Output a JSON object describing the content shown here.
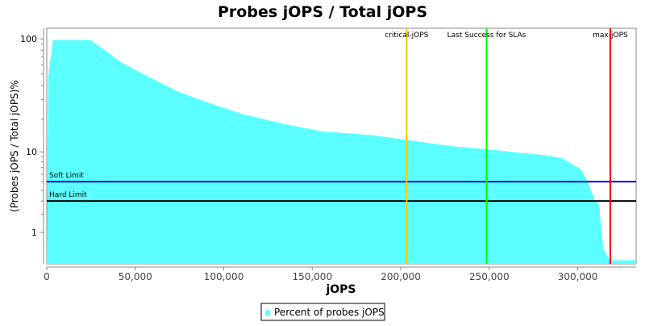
{
  "chart_data": {
    "type": "area",
    "title": "Probes jOPS / Total jOPS",
    "xlabel": "jOPS",
    "ylabel": "(Probes jOPS / Total jOPS)%",
    "x_scale": "linear",
    "y_scale": "log",
    "xlim": [
      0,
      333000
    ],
    "ylim": [
      0,
      100
    ],
    "x_ticks": [
      0,
      50000,
      100000,
      150000,
      200000,
      250000,
      300000
    ],
    "x_tick_labels": [
      "0",
      "50,000",
      "100,000",
      "150,000",
      "200,000",
      "250,000",
      "300,000"
    ],
    "y_ticks": [
      1,
      10,
      100
    ],
    "y_tick_labels": [
      "1",
      "10",
      "100"
    ],
    "grid": false,
    "legend_placement": "bottom",
    "series": [
      {
        "name": "Percent of probes jOPS",
        "color": "#5bffff",
        "x": [
          0,
          800,
          3600,
          24600,
          32800,
          42000,
          55600,
          73800,
          92000,
          110000,
          133000,
          156000,
          183000,
          203000,
          229000,
          248000,
          283000,
          291000,
          302000,
          305000,
          309500,
          312000,
          314500,
          318000,
          333000
        ],
        "y": [
          0,
          47.5,
          98,
          98,
          80,
          63,
          49,
          35.4,
          27.8,
          22.4,
          18.3,
          15.5,
          14.4,
          13.0,
          11.3,
          10.6,
          9.2,
          8.7,
          6.7,
          5.3,
          3.15,
          2.7,
          0.35,
          0,
          0
        ]
      }
    ],
    "horizontal_markers": [
      {
        "label": "Soft Limit",
        "value": 5,
        "color": "#0000ff"
      },
      {
        "label": "Hard Limit",
        "value": 3,
        "color": "#000000"
      }
    ],
    "vertical_markers": [
      {
        "label": "critical-jOPS",
        "value": 203300,
        "color": "#ffc800"
      },
      {
        "label": "Last Success for SLAs",
        "value": 248500,
        "color": "#00ff00"
      },
      {
        "label": "max-jOPS",
        "value": 318400,
        "color": "#ff0000"
      }
    ]
  }
}
